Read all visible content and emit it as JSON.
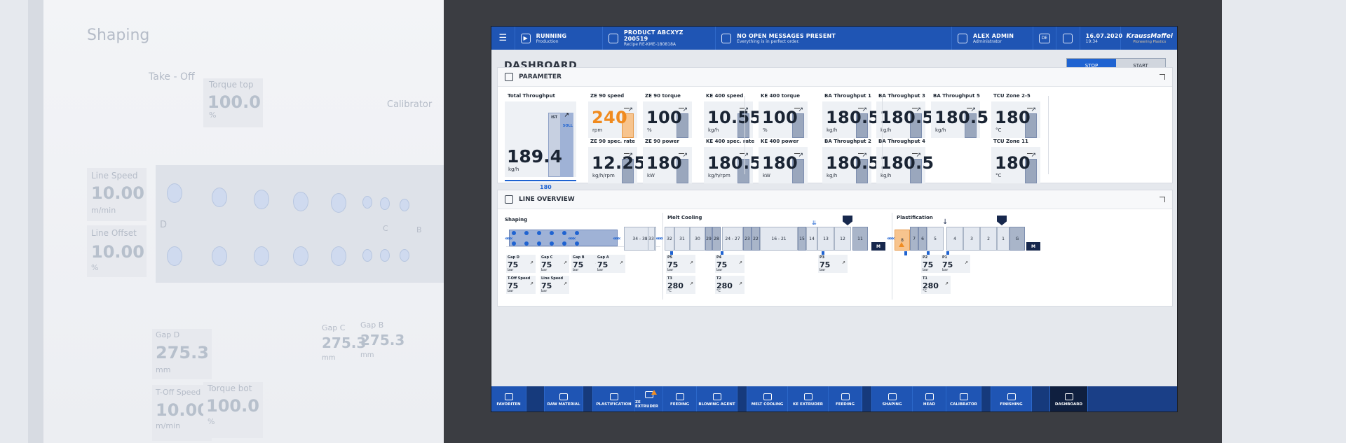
{
  "ghost": {
    "shaping": "Shaping",
    "take_off": "Take - Off",
    "calibrator": "Calibrator",
    "torque_top_label": "Torque top",
    "torque_top_value": "100.0",
    "torque_top_unit": "%",
    "line_speed_label": "Line Speed",
    "line_speed_value": "10.00",
    "line_speed_unit": "m/min",
    "line_offset_label": "Line Offset",
    "line_offset_value": "10.00",
    "line_offset_unit": "%",
    "d": "D",
    "c": "C",
    "b": "B",
    "gap_d_label": "Gap D",
    "gap_d_value": "275.3",
    "gap_d_unit": "mm",
    "gap_c_label": "Gap C",
    "gap_c_value": "275.3",
    "gap_c_unit": "mm",
    "gap_b_label": "Gap B",
    "gap_b_value": "275.3",
    "gap_b_unit": "mm",
    "toff_label": "T-Off Speed",
    "toff_value": "10.00",
    "toff_unit": "m/min",
    "torque_bot_label": "Torque bot",
    "torque_bot_value": "100.0",
    "torque_bot_unit": "%"
  },
  "topbar": {
    "status_t1": "RUNNING",
    "status_t2": "Production",
    "product_t1": "PRODUCT ABCXYZ 200519",
    "product_t2": "Recipe RE-KME-180818A",
    "msg_t1": "NO OPEN MESSAGES PRESENT",
    "msg_t2": "Everything is in perfect order.",
    "user_t1": "ALEX ADMIN",
    "user_t2": "Administrator",
    "lang": "DE",
    "date": "16.07.2020",
    "time": "19:34",
    "brand": "KraussMaffei",
    "brand_sub": "Pioneering Plastics"
  },
  "dash": {
    "title": "DASHBOARD",
    "stop": "STOP",
    "start": "START"
  },
  "param": {
    "title": "PARAMETER",
    "total_label": "Total Throughput",
    "total_value": "189.4",
    "total_unit": "kg/h",
    "total_set": "180",
    "ist": "IST",
    "soll": "SOLL",
    "cards": [
      {
        "label": "ZE 90 speed",
        "value": "240",
        "unit": "rpm"
      },
      {
        "label": "ZE 90 torque",
        "value": "100",
        "unit": "%"
      },
      {
        "label": "ZE 90 spec. rate",
        "value": "12.25",
        "unit": "kg/h/rpm"
      },
      {
        "label": "ZE 90 power",
        "value": "180",
        "unit": "kW"
      },
      {
        "label": "KE 400 speed",
        "value": "10.55",
        "unit": "kg/h"
      },
      {
        "label": "KE 400  torque",
        "value": "100",
        "unit": "%"
      },
      {
        "label": "KE 400  spec. rate",
        "value": "180.5",
        "unit": "kg/h/rpm"
      },
      {
        "label": "KE 400  power",
        "value": "180",
        "unit": "kW"
      },
      {
        "label": "BA Throughput 1",
        "value": "180.5",
        "unit": "kg/h"
      },
      {
        "label": "BA Throughput 3",
        "value": "180.5",
        "unit": "kg/h"
      },
      {
        "label": "BA Throughput 5",
        "value": "180.5",
        "unit": "kg/h"
      },
      {
        "label": "BA Throughput 2",
        "value": "180.5",
        "unit": "kg/h"
      },
      {
        "label": "BA Throughput 4",
        "value": "180.5",
        "unit": "kg/h"
      },
      {
        "label": "TCU Zone 2-5",
        "value": "180",
        "unit": "°C"
      },
      {
        "label": "TCU Zone 11",
        "value": "180",
        "unit": "°C"
      }
    ]
  },
  "line": {
    "title": "LINE OVERVIEW",
    "shaping": "Shaping",
    "melt": "Melt Cooling",
    "plast": "Plastification",
    "blocks": [
      "34 - 38",
      "33",
      "32",
      "31",
      "30",
      "29",
      "28",
      "24 - 27",
      "23",
      "22",
      "16 - 21",
      "15",
      "14",
      "13",
      "12",
      "11",
      "M",
      "8",
      "7",
      "6",
      "5",
      "4",
      "3",
      "2",
      "1",
      "G",
      "M"
    ],
    "minis": [
      {
        "l": "Gap D",
        "v": "75",
        "u": "bar"
      },
      {
        "l": "Gap C",
        "v": "75",
        "u": "bar"
      },
      {
        "l": "Gap B",
        "v": "75",
        "u": "bar"
      },
      {
        "l": "Gap A",
        "v": "75",
        "u": "bar"
      },
      {
        "l": "T-Off Speed",
        "v": "75",
        "u": "bar"
      },
      {
        "l": "Line Speed",
        "v": "75",
        "u": "bar"
      },
      {
        "l": "P5",
        "v": "75",
        "u": "bar"
      },
      {
        "l": "P4",
        "v": "75",
        "u": "bar"
      },
      {
        "l": "T3",
        "v": "280",
        "u": "°C"
      },
      {
        "l": "T2",
        "v": "280",
        "u": "°C"
      },
      {
        "l": "P3",
        "v": "75",
        "u": "bar"
      },
      {
        "l": "P2",
        "v": "75",
        "u": "bar"
      },
      {
        "l": "P1",
        "v": "75",
        "u": "bar"
      },
      {
        "l": "T1",
        "v": "280",
        "u": "°C"
      }
    ]
  },
  "nav": [
    "FAVORITEN",
    "RAW MATERIAL",
    "PLASTIFICATION",
    "ZE EXTRUDER",
    "FEEDING",
    "BLOWING AGENT",
    "MELT COOLING",
    "KE EXTRUDER",
    "FEEDING",
    "SHAPING",
    "HEAD",
    "CALIBRATOR",
    "FINISHING",
    "DASHBOARD"
  ],
  "colors": {
    "accent": "#1f63d1",
    "topbar": "#1f55b4",
    "warning": "#f08c22",
    "highlight": "#f08a1e"
  }
}
